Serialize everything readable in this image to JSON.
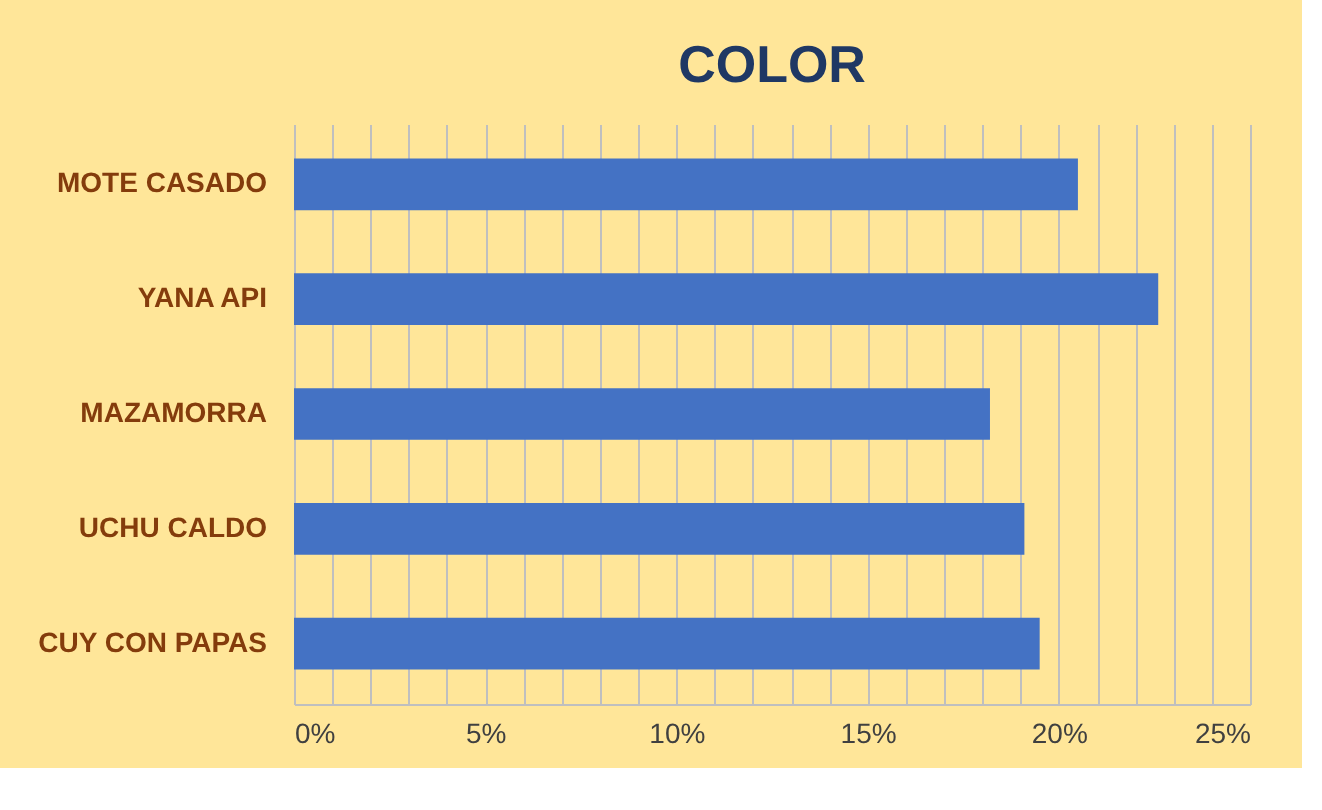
{
  "chart_data": {
    "type": "bar",
    "orientation": "horizontal",
    "title": "COLOR",
    "categories": [
      "MOTE CASADO",
      "YANA API",
      "MAZAMORRA",
      "UCHU CALDO",
      "CUY CON PAPAS"
    ],
    "values": [
      20.5,
      22.6,
      18.2,
      19.1,
      19.5
    ],
    "color": "#4472c4",
    "xlim": [
      0,
      25
    ],
    "xticks": [
      {
        "value": 0,
        "label": "0%"
      },
      {
        "value": 1,
        "label": null
      },
      {
        "value": 2,
        "label": null
      },
      {
        "value": 3,
        "label": null
      },
      {
        "value": 4,
        "label": null
      },
      {
        "value": 5,
        "label": "5%"
      },
      {
        "value": 6,
        "label": null
      },
      {
        "value": 7,
        "label": null
      },
      {
        "value": 8,
        "label": null
      },
      {
        "value": 9,
        "label": null
      },
      {
        "value": 10,
        "label": "10%"
      },
      {
        "value": 11,
        "label": null
      },
      {
        "value": 12,
        "label": null
      },
      {
        "value": 13,
        "label": null
      },
      {
        "value": 14,
        "label": null
      },
      {
        "value": 15,
        "label": "15%"
      },
      {
        "value": 16,
        "label": null
      },
      {
        "value": 17,
        "label": null
      },
      {
        "value": 18,
        "label": null
      },
      {
        "value": 19,
        "label": null
      },
      {
        "value": 20,
        "label": "20%"
      },
      {
        "value": 21,
        "label": null
      },
      {
        "value": 22,
        "label": null
      },
      {
        "value": 23,
        "label": null
      },
      {
        "value": 24,
        "label": null
      },
      {
        "value": 25,
        "label": "25%"
      }
    ],
    "grid": "x"
  }
}
